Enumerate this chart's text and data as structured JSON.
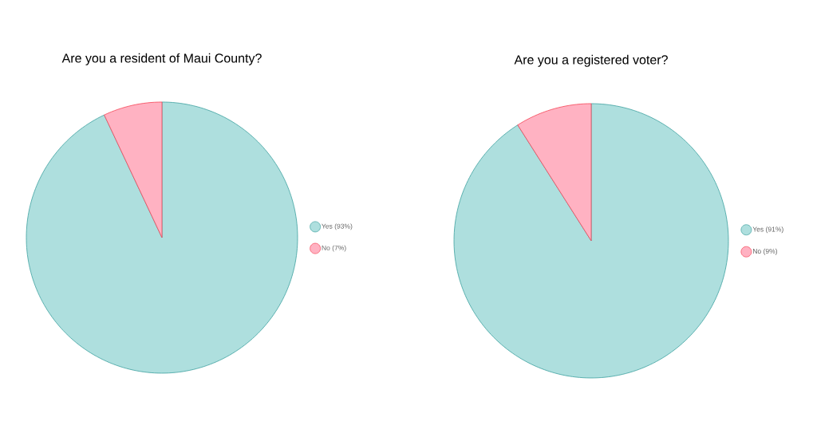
{
  "chart_data": [
    {
      "type": "pie",
      "title": "Are you a resident of Maui County?",
      "categories": [
        "Yes (93%)",
        "No (7%)"
      ],
      "values": [
        93,
        7
      ],
      "colors": [
        "#aedfde",
        "#ffb2c2"
      ],
      "legend": "right"
    },
    {
      "type": "pie",
      "title": "Are you a registered voter?",
      "categories": [
        "Yes (91%)",
        "No (9%)"
      ],
      "values": [
        91,
        9
      ],
      "colors": [
        "#aedfde",
        "#ffb2c2"
      ],
      "legend": "right"
    }
  ]
}
